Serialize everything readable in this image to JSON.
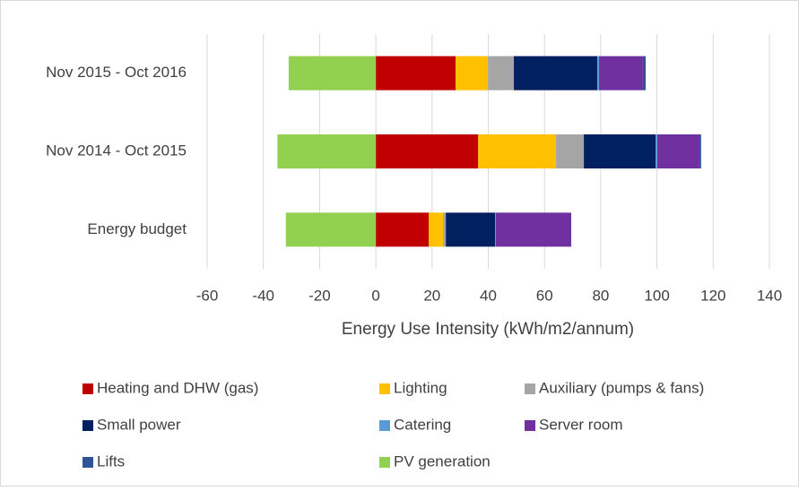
{
  "chart_data": {
    "type": "stacked-bar-horizontal",
    "categories": [
      "Nov 2015 - Oct 2016",
      "Nov 2014 - Oct 2015",
      "Energy budget"
    ],
    "x_label": "Energy Use Intensity (kWh/m2/annum)",
    "xlim": [
      -60,
      140
    ],
    "xticks": [
      -60,
      -40,
      -20,
      0,
      20,
      40,
      60,
      80,
      100,
      120,
      140
    ],
    "grid": true,
    "legend_position": "bottom",
    "series": [
      {
        "name": "Heating and DHW (gas)",
        "color": "#c00000",
        "values": [
          28.4,
          36.4,
          18.8
        ]
      },
      {
        "name": "Lighting",
        "color": "#ffc000",
        "values": [
          11.5,
          27.7,
          5.1
        ]
      },
      {
        "name": "Auxiliary (pumps & fans)",
        "color": "#a5a5a5",
        "values": [
          9.2,
          9.9,
          1
        ]
      },
      {
        "name": "Small power",
        "color": "#002060",
        "values": [
          29.7,
          25.5,
          17.5
        ]
      },
      {
        "name": "Catering",
        "color": "#5b9bd5",
        "values": [
          0.6,
          0.6,
          0.3
        ]
      },
      {
        "name": "Server room",
        "color": "#7030a0",
        "values": [
          15.6,
          15,
          26.8
        ]
      },
      {
        "name": "Lifts",
        "color": "#2f5597",
        "values": [
          1,
          0.6,
          0
        ]
      },
      {
        "name": "PV generation",
        "color": "#92d050",
        "values": [
          -31,
          -35,
          -32
        ]
      }
    ]
  }
}
